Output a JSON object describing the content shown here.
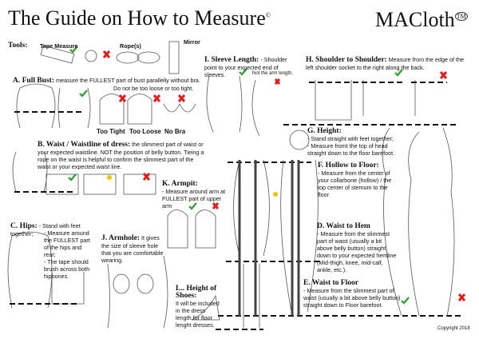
{
  "header": {
    "title": "The Guide on How to Measure",
    "title_mark": "©",
    "brand": "MACloth",
    "brand_mark": "TM"
  },
  "tools": {
    "label": "Tools:",
    "tape": "Tape Measure",
    "rope": "Rope(s)",
    "mirror": "Mirror"
  },
  "sections": {
    "A": {
      "title": "A. Full Bust:",
      "text": "measure the FULLEST part of bust parallelly without bra.",
      "text2": "Do not be too loose or too tight.",
      "labels": [
        "Too Tight",
        "Too Loose",
        "No Bra"
      ]
    },
    "B": {
      "title": "B. Waist / Waistline of dress:",
      "text": "the slimmest part of waist or your expected waistline. NOT the position of belly button. Tieing a rope on the waist is helpful to confirm the slimmest part of the waist or your expected waist line."
    },
    "C": {
      "title": "C. Hips:",
      "text1": "- Stand with feet together;",
      "text2": "- Measure around the FULLEST part of the hips and rear;",
      "text3": "- The tape should brush across both hipbones."
    },
    "D": {
      "title": "D. Waist to Hem",
      "text": "- Measure from the slimmest part of waist (usually a  bit  above belly button) straight down to your expected hemline (Mid-thigh, knee, mid-calf, ankle, etc.)."
    },
    "E": {
      "title": "E. Waist to Floor",
      "text": "- Measure from the slimmest part of waist (usually a  bit  above belly button) straight down to Floor barefoot."
    },
    "F": {
      "title": "F. Hollow to Floor:",
      "text": "- Measure from the center of your collarbone (hollow) / the top center of stemum to the floor"
    },
    "G": {
      "title": "G. Height:",
      "text1": "- Stand straight with feet together;",
      "text2": "- Measure fromt the top of head straight down to the  floor barefoot."
    },
    "H": {
      "title": "H. Shoulder to Shoulder:",
      "text": "Measure from the edge of the left shoulder socket to the right along the back."
    },
    "I": {
      "title": "I. Sleeve Length:",
      "text": "- Shoulder point to your expected end of sleeves.",
      "note": "Not the arm length."
    },
    "J": {
      "title": "J. Armhole:",
      "text": "It gives the size of sleeve hole that you are comfortable wearing."
    },
    "K": {
      "title": "K. Armpit:",
      "text": "- Measure around arm at FULLEST part of upper arm"
    },
    "L": {
      "title": "L.. Height of Shoes:",
      "text": "It will be included in the dress length for floor lenght dresses."
    }
  },
  "footer": {
    "copyright": "Copyright 2018"
  },
  "colors": {
    "check": "#2aa02a",
    "cross": "#e41b1b",
    "bulb": "#f2c300"
  }
}
